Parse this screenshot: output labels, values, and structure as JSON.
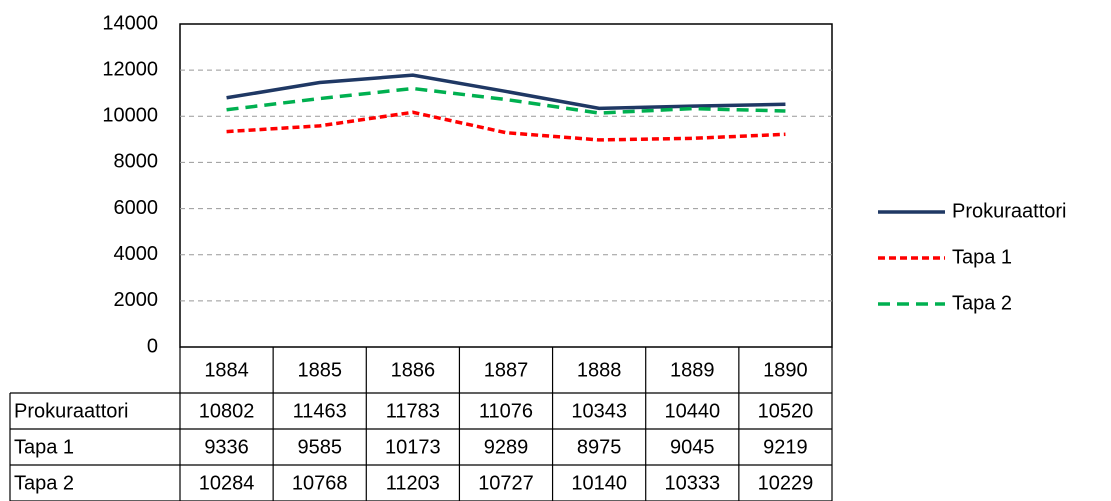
{
  "chart_data": {
    "type": "line",
    "categories": [
      "1884",
      "1885",
      "1886",
      "1887",
      "1888",
      "1889",
      "1890"
    ],
    "series": [
      {
        "name": "Prokuraattori",
        "color": "#1f3864",
        "dash": "solid",
        "values": [
          10802,
          11463,
          11783,
          11076,
          10343,
          10440,
          10520
        ]
      },
      {
        "name": "Tapa 1",
        "color": "#ff0000",
        "dash": "dotted",
        "values": [
          9336,
          9585,
          10173,
          9289,
          8975,
          9045,
          9219
        ]
      },
      {
        "name": "Tapa 2",
        "color": "#00b050",
        "dash": "dashed",
        "values": [
          10284,
          10768,
          11203,
          10727,
          10140,
          10333,
          10229
        ]
      }
    ],
    "ylim": [
      0,
      14000
    ],
    "yticks": [
      0,
      2000,
      4000,
      6000,
      8000,
      10000,
      12000,
      14000
    ],
    "grid": true,
    "legend": "right",
    "data_table": true
  }
}
